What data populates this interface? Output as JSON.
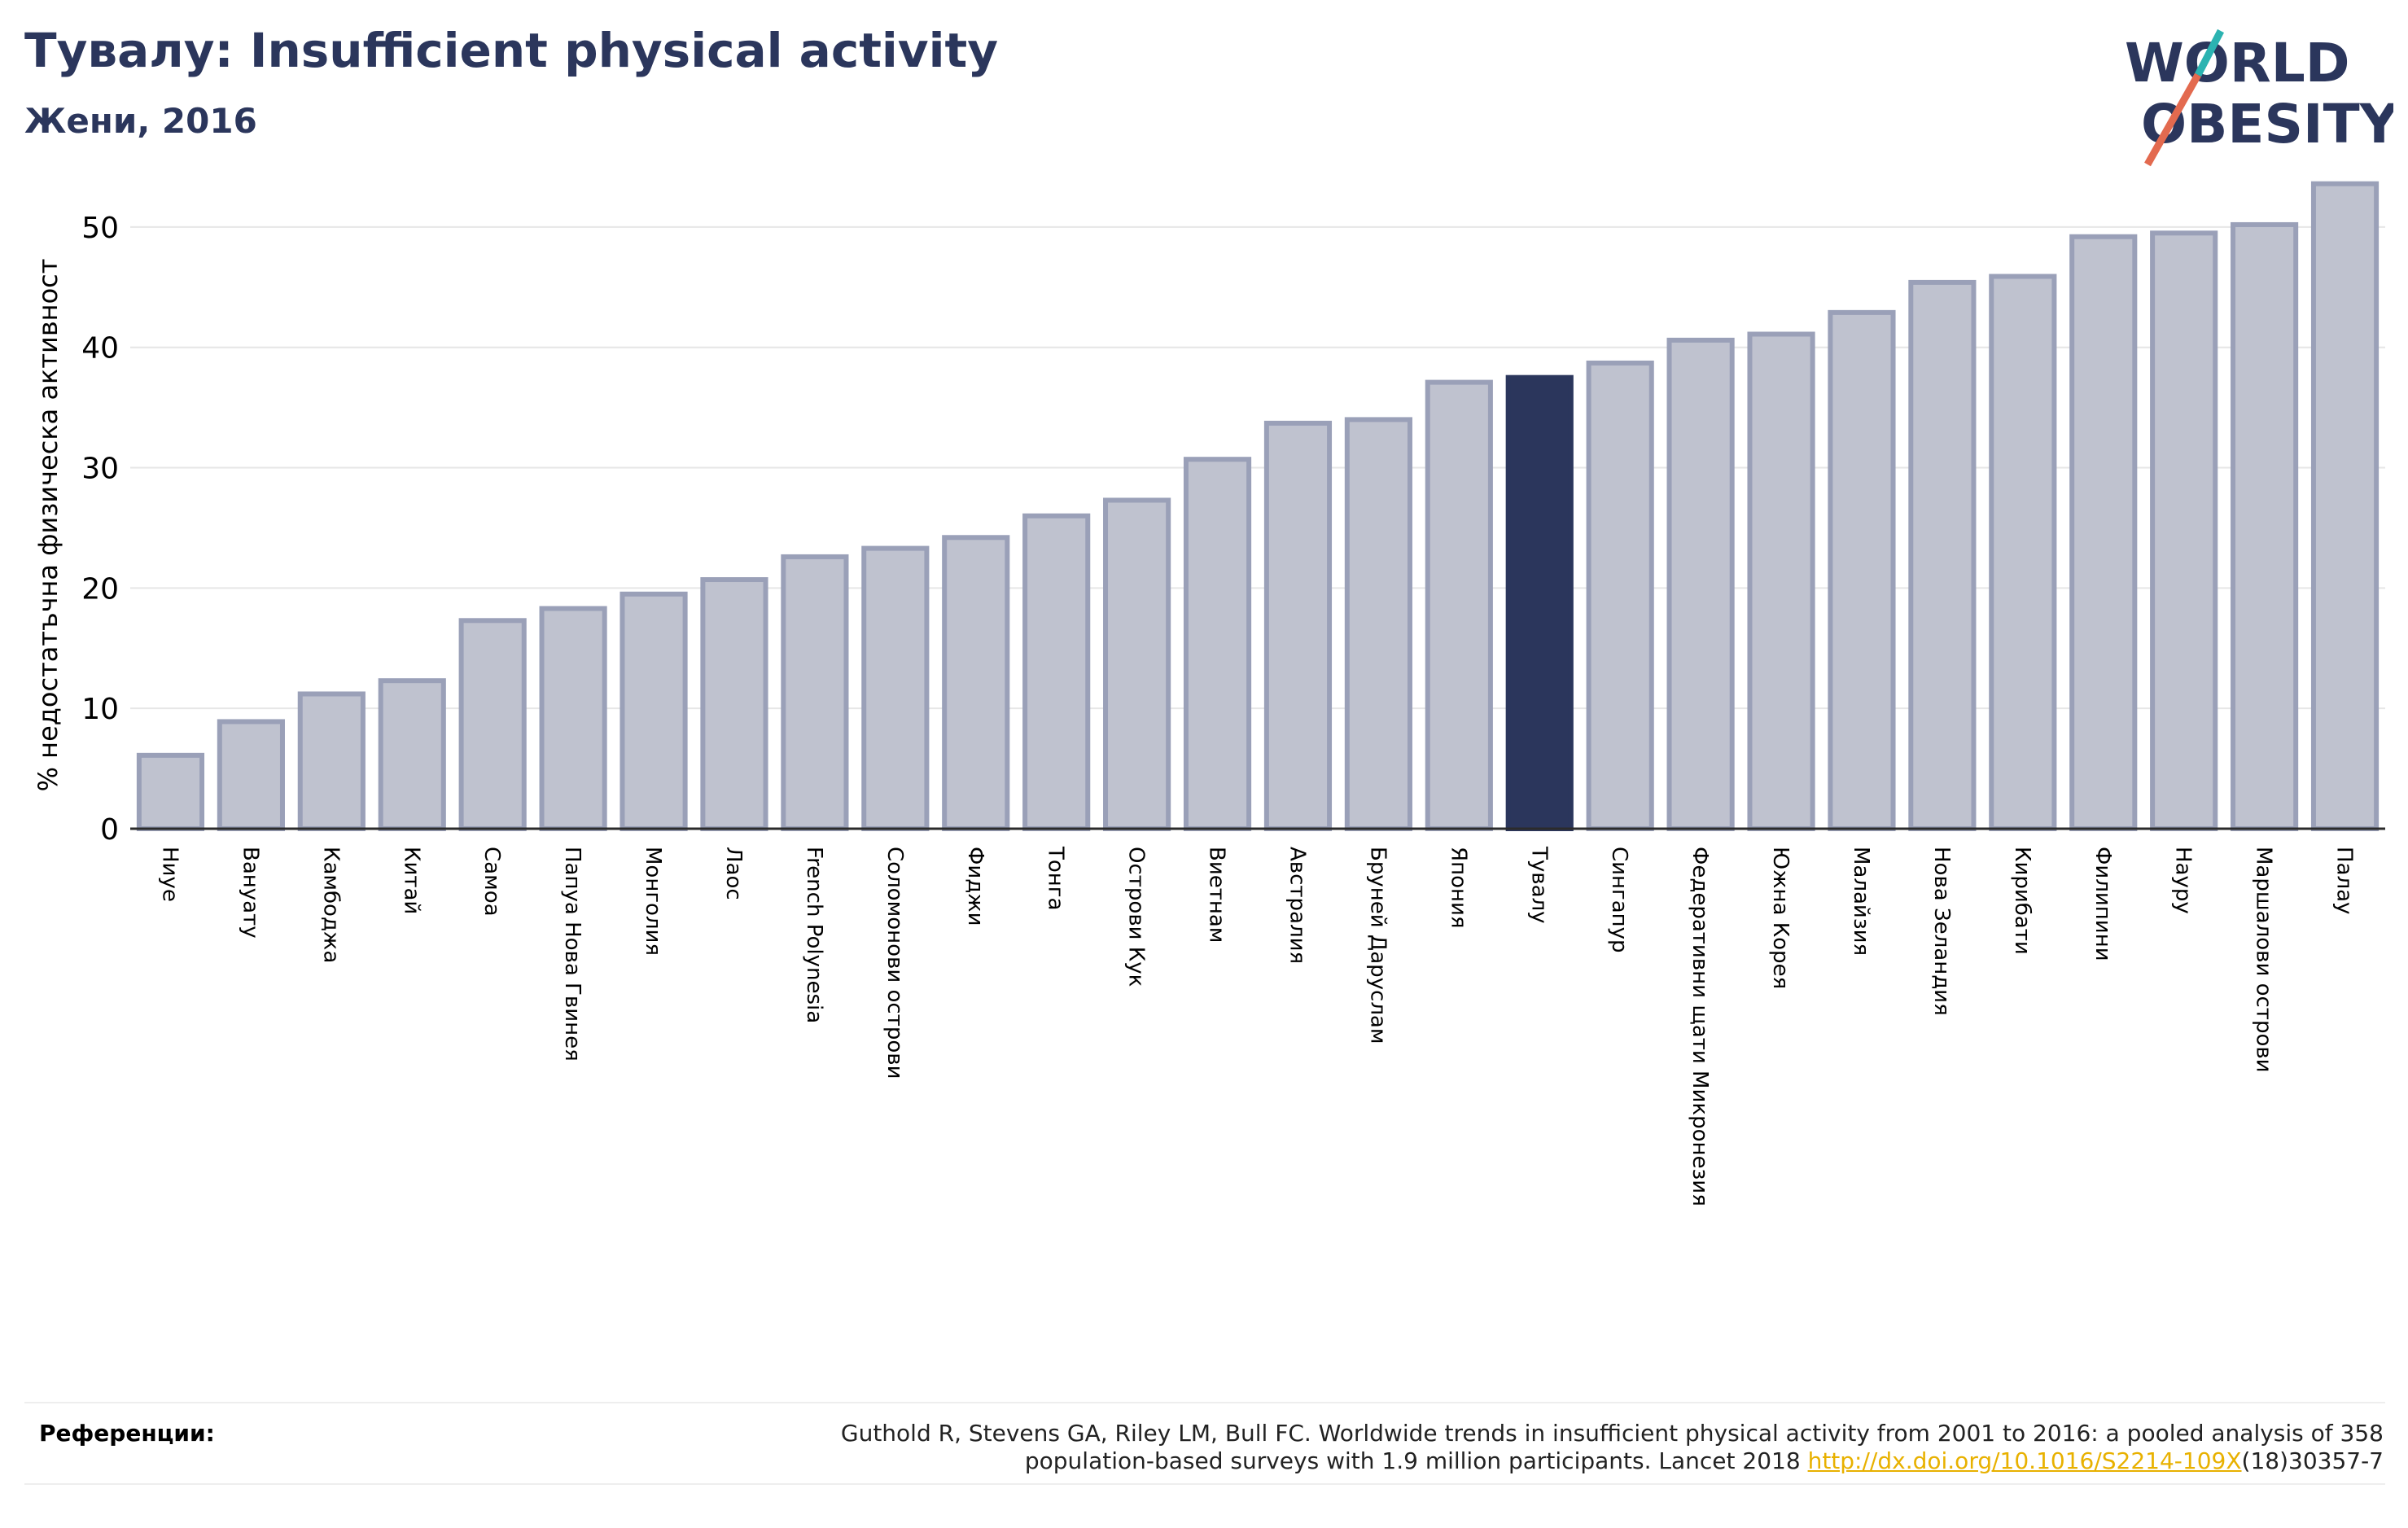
{
  "header": {
    "title": "Тувалу: Insufficient physical activity",
    "subtitle": "Жени, 2016"
  },
  "logo": {
    "line1": "WORLD",
    "line2": "OBESITY"
  },
  "colors": {
    "bar": "#bfc2cf",
    "bar_edge": "#9aa0b8",
    "highlight": "#2b365c",
    "text": "#2b365c"
  },
  "chart_data": {
    "type": "bar",
    "title": "Тувалу: Insufficient physical activity",
    "subtitle": "Жени, 2016",
    "ylabel": "% недостатъчна физическа активност",
    "ylim": [
      0,
      55
    ],
    "yticks": [
      0,
      10,
      20,
      30,
      40,
      50
    ],
    "grid": true,
    "highlight": "Тувалу",
    "categories": [
      "Ниуе",
      "Вануату",
      "Камбоджа",
      "Китай",
      "Самоа",
      "Папуа Нова Гвинея",
      "Монголия",
      "Лаос",
      "French Polynesia",
      "Соломонови острови",
      "Фиджи",
      "Тонга",
      "Острови Кук",
      "Виетнам",
      "Австралия",
      "Бруней Даруслам",
      "Япония",
      "Тувалу",
      "Сингапур",
      "Федеративни щати Микронезия",
      "Южна Корея",
      "Малайзия",
      "Нова Зеландия",
      "Кирибати",
      "Филипини",
      "Науру",
      "Маршалови острови",
      "Палау"
    ],
    "values": [
      6.1,
      8.9,
      11.2,
      12.3,
      17.3,
      18.3,
      19.5,
      20.7,
      22.6,
      23.3,
      24.2,
      26.0,
      27.3,
      30.7,
      33.7,
      34.0,
      37.1,
      37.5,
      38.7,
      40.6,
      41.1,
      42.9,
      45.4,
      45.9,
      49.2,
      49.5,
      50.2,
      53.6
    ]
  },
  "references": {
    "label": "Референции:",
    "line1": "Guthold R, Stevens GA, Riley LM, Bull FC. Worldwide trends in insufficient physical activity from 2001 to 2016: a pooled analysis of 358",
    "line2_pre": "population-based surveys with 1.9 million participants. Lancet 2018 ",
    "link": "http://dx.doi.org/10.1016/S2214-109X",
    "line2_post": "(18)30357-7"
  }
}
